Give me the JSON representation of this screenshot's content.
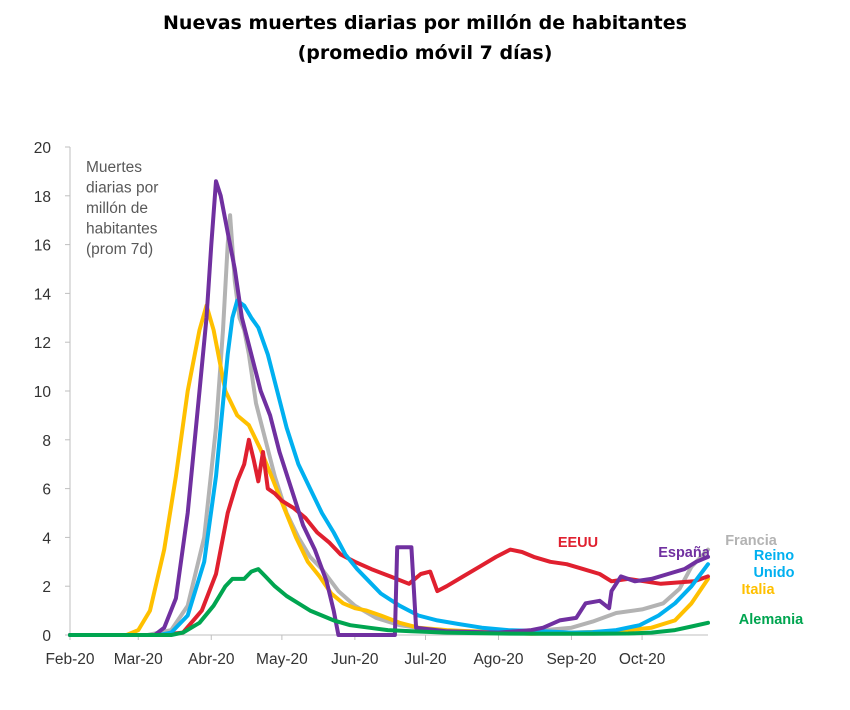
{
  "chart_data": {
    "type": "line",
    "title": "Nuevas muertes diarias por millón de habitantes",
    "subtitle": "(promedio móvil 7 días)",
    "ylabel_lines": [
      "Muertes",
      "diarias por",
      "millón de",
      "habitantes",
      "(prom 7d)"
    ],
    "ylim": [
      0,
      20
    ],
    "yticks": [
      0,
      2,
      4,
      6,
      8,
      10,
      12,
      14,
      16,
      18,
      20
    ],
    "xticks": [
      "Feb-20",
      "Mar-20",
      "Abr-20",
      "May-20",
      "Jun-20",
      "Jul-20",
      "Ago-20",
      "Sep-20",
      "Oct-20"
    ],
    "xlim": [
      "2020-02-01",
      "2020-10-29"
    ],
    "grid": false,
    "series": [
      {
        "name": "Francia",
        "label_lines": [
          "Francia"
        ],
        "color": "#b3b3b3",
        "points": [
          [
            "2020-02-01",
            0
          ],
          [
            "2020-03-05",
            0
          ],
          [
            "2020-03-15",
            0.2
          ],
          [
            "2020-03-22",
            1.2
          ],
          [
            "2020-03-29",
            4
          ],
          [
            "2020-04-03",
            8.5
          ],
          [
            "2020-04-06",
            12.5
          ],
          [
            "2020-04-08",
            16
          ],
          [
            "2020-04-09",
            17.2
          ],
          [
            "2020-04-11",
            14.5
          ],
          [
            "2020-04-13",
            13
          ],
          [
            "2020-04-15",
            12.5
          ],
          [
            "2020-04-17",
            11.5
          ],
          [
            "2020-04-20",
            9.5
          ],
          [
            "2020-04-24",
            8
          ],
          [
            "2020-04-28",
            6.5
          ],
          [
            "2020-05-03",
            5
          ],
          [
            "2020-05-08",
            4
          ],
          [
            "2020-05-13",
            3.2
          ],
          [
            "2020-05-18",
            2.7
          ],
          [
            "2020-05-25",
            1.8
          ],
          [
            "2020-06-01",
            1.2
          ],
          [
            "2020-06-10",
            0.7
          ],
          [
            "2020-06-20",
            0.4
          ],
          [
            "2020-07-01",
            0.25
          ],
          [
            "2020-07-15",
            0.15
          ],
          [
            "2020-08-01",
            0.15
          ],
          [
            "2020-08-15",
            0.15
          ],
          [
            "2020-09-01",
            0.3
          ],
          [
            "2020-09-10",
            0.55
          ],
          [
            "2020-09-20",
            0.9
          ],
          [
            "2020-10-01",
            1.05
          ],
          [
            "2020-10-10",
            1.3
          ],
          [
            "2020-10-17",
            1.9
          ],
          [
            "2020-10-22",
            2.8
          ],
          [
            "2020-10-29",
            3.5
          ]
        ]
      },
      {
        "name": "Italia",
        "label_lines": [
          "Italia"
        ],
        "color": "#ffc000",
        "points": [
          [
            "2020-02-01",
            0
          ],
          [
            "2020-02-25",
            0
          ],
          [
            "2020-03-01",
            0.2
          ],
          [
            "2020-03-06",
            1
          ],
          [
            "2020-03-12",
            3.5
          ],
          [
            "2020-03-17",
            6.5
          ],
          [
            "2020-03-22",
            10
          ],
          [
            "2020-03-27",
            12.5
          ],
          [
            "2020-03-30",
            13.5
          ],
          [
            "2020-04-02",
            12.5
          ],
          [
            "2020-04-07",
            10
          ],
          [
            "2020-04-12",
            9
          ],
          [
            "2020-04-17",
            8.6
          ],
          [
            "2020-04-22",
            7.6
          ],
          [
            "2020-04-27",
            6.4
          ],
          [
            "2020-05-02",
            5.2
          ],
          [
            "2020-05-07",
            4
          ],
          [
            "2020-05-12",
            3
          ],
          [
            "2020-05-17",
            2.4
          ],
          [
            "2020-05-22",
            1.7
          ],
          [
            "2020-05-27",
            1.3
          ],
          [
            "2020-06-01",
            1.1
          ],
          [
            "2020-06-06",
            1
          ],
          [
            "2020-06-12",
            0.8
          ],
          [
            "2020-06-20",
            0.5
          ],
          [
            "2020-06-28",
            0.3
          ],
          [
            "2020-07-10",
            0.2
          ],
          [
            "2020-08-01",
            0.1
          ],
          [
            "2020-08-15",
            0.05
          ],
          [
            "2020-09-01",
            0.1
          ],
          [
            "2020-09-20",
            0.15
          ],
          [
            "2020-10-05",
            0.3
          ],
          [
            "2020-10-15",
            0.6
          ],
          [
            "2020-10-22",
            1.3
          ],
          [
            "2020-10-29",
            2.3
          ]
        ]
      },
      {
        "name": "EEUU",
        "label_lines": [
          "EEUU"
        ],
        "color": "#e0202f",
        "points": [
          [
            "2020-02-01",
            0
          ],
          [
            "2020-03-10",
            0
          ],
          [
            "2020-03-20",
            0.1
          ],
          [
            "2020-03-28",
            1
          ],
          [
            "2020-04-03",
            2.5
          ],
          [
            "2020-04-08",
            5
          ],
          [
            "2020-04-12",
            6.3
          ],
          [
            "2020-04-15",
            7
          ],
          [
            "2020-04-17",
            8
          ],
          [
            "2020-04-19",
            7.2
          ],
          [
            "2020-04-21",
            6.3
          ],
          [
            "2020-04-23",
            7.5
          ],
          [
            "2020-04-25",
            6
          ],
          [
            "2020-04-28",
            5.8
          ],
          [
            "2020-05-01",
            5.5
          ],
          [
            "2020-05-06",
            5.2
          ],
          [
            "2020-05-11",
            4.8
          ],
          [
            "2020-05-16",
            4.2
          ],
          [
            "2020-05-21",
            3.8
          ],
          [
            "2020-05-26",
            3.3
          ],
          [
            "2020-06-01",
            3
          ],
          [
            "2020-06-08",
            2.7
          ],
          [
            "2020-06-16",
            2.4
          ],
          [
            "2020-06-24",
            2.1
          ],
          [
            "2020-06-29",
            2.5
          ],
          [
            "2020-07-03",
            2.6
          ],
          [
            "2020-07-06",
            1.8
          ],
          [
            "2020-07-10",
            2
          ],
          [
            "2020-07-17",
            2.4
          ],
          [
            "2020-07-24",
            2.8
          ],
          [
            "2020-07-31",
            3.2
          ],
          [
            "2020-08-06",
            3.5
          ],
          [
            "2020-08-11",
            3.4
          ],
          [
            "2020-08-16",
            3.2
          ],
          [
            "2020-08-23",
            3
          ],
          [
            "2020-08-30",
            2.9
          ],
          [
            "2020-09-06",
            2.7
          ],
          [
            "2020-09-13",
            2.5
          ],
          [
            "2020-09-18",
            2.2
          ],
          [
            "2020-09-25",
            2.3
          ],
          [
            "2020-10-02",
            2.2
          ],
          [
            "2020-10-09",
            2.1
          ],
          [
            "2020-10-16",
            2.15
          ],
          [
            "2020-10-23",
            2.2
          ],
          [
            "2020-10-29",
            2.4
          ]
        ]
      },
      {
        "name": "España",
        "label_lines": [
          "España"
        ],
        "color": "#7030a0",
        "points": [
          [
            "2020-02-01",
            0
          ],
          [
            "2020-03-08",
            0
          ],
          [
            "2020-03-12",
            0.3
          ],
          [
            "2020-03-17",
            1.5
          ],
          [
            "2020-03-22",
            5
          ],
          [
            "2020-03-27",
            10
          ],
          [
            "2020-03-30",
            13
          ],
          [
            "2020-04-01",
            16
          ],
          [
            "2020-04-03",
            18.6
          ],
          [
            "2020-04-05",
            18
          ],
          [
            "2020-04-08",
            16.5
          ],
          [
            "2020-04-11",
            15
          ],
          [
            "2020-04-14",
            13
          ],
          [
            "2020-04-18",
            11.5
          ],
          [
            "2020-04-22",
            10
          ],
          [
            "2020-04-26",
            9
          ],
          [
            "2020-04-30",
            7.5
          ],
          [
            "2020-05-05",
            6
          ],
          [
            "2020-05-10",
            4.5
          ],
          [
            "2020-05-15",
            3.5
          ],
          [
            "2020-05-20",
            2.2
          ],
          [
            "2020-05-23",
            1
          ],
          [
            "2020-05-25",
            0
          ],
          [
            "2020-06-18",
            0
          ],
          [
            "2020-06-19",
            3.6
          ],
          [
            "2020-06-25",
            3.6
          ],
          [
            "2020-06-27",
            0.3
          ],
          [
            "2020-07-10",
            0.15
          ],
          [
            "2020-08-01",
            0.1
          ],
          [
            "2020-08-15",
            0.2
          ],
          [
            "2020-08-20",
            0.3
          ],
          [
            "2020-08-27",
            0.6
          ],
          [
            "2020-09-03",
            0.7
          ],
          [
            "2020-09-07",
            1.3
          ],
          [
            "2020-09-13",
            1.4
          ],
          [
            "2020-09-17",
            1.1
          ],
          [
            "2020-09-18",
            1.8
          ],
          [
            "2020-09-22",
            2.4
          ],
          [
            "2020-09-28",
            2.2
          ],
          [
            "2020-10-05",
            2.3
          ],
          [
            "2020-10-12",
            2.5
          ],
          [
            "2020-10-19",
            2.7
          ],
          [
            "2020-10-24",
            3
          ],
          [
            "2020-10-29",
            3.2
          ]
        ]
      },
      {
        "name": "Reino Unido",
        "label_lines": [
          "Reino",
          "Unido"
        ],
        "color": "#00b0f0",
        "points": [
          [
            "2020-02-01",
            0
          ],
          [
            "2020-03-10",
            0
          ],
          [
            "2020-03-15",
            0.1
          ],
          [
            "2020-03-22",
            0.8
          ],
          [
            "2020-03-29",
            3
          ],
          [
            "2020-04-03",
            6.5
          ],
          [
            "2020-04-06",
            9.5
          ],
          [
            "2020-04-08",
            11.5
          ],
          [
            "2020-04-10",
            13
          ],
          [
            "2020-04-12",
            13.7
          ],
          [
            "2020-04-15",
            13.5
          ],
          [
            "2020-04-18",
            13
          ],
          [
            "2020-04-21",
            12.6
          ],
          [
            "2020-04-25",
            11.5
          ],
          [
            "2020-04-29",
            10
          ],
          [
            "2020-05-03",
            8.5
          ],
          [
            "2020-05-08",
            7
          ],
          [
            "2020-05-13",
            6
          ],
          [
            "2020-05-18",
            5
          ],
          [
            "2020-05-23",
            4.2
          ],
          [
            "2020-05-28",
            3.3
          ],
          [
            "2020-06-02",
            2.7
          ],
          [
            "2020-06-07",
            2.2
          ],
          [
            "2020-06-12",
            1.7
          ],
          [
            "2020-06-20",
            1.2
          ],
          [
            "2020-06-28",
            0.8
          ],
          [
            "2020-07-06",
            0.6
          ],
          [
            "2020-07-15",
            0.45
          ],
          [
            "2020-07-25",
            0.3
          ],
          [
            "2020-08-05",
            0.2
          ],
          [
            "2020-08-20",
            0.15
          ],
          [
            "2020-09-01",
            0.1
          ],
          [
            "2020-09-10",
            0.12
          ],
          [
            "2020-09-20",
            0.2
          ],
          [
            "2020-09-30",
            0.4
          ],
          [
            "2020-10-08",
            0.8
          ],
          [
            "2020-10-15",
            1.3
          ],
          [
            "2020-10-22",
            2
          ],
          [
            "2020-10-29",
            2.9
          ]
        ]
      },
      {
        "name": "Alemania",
        "label_lines": [
          "Alemania"
        ],
        "color": "#00a550",
        "points": [
          [
            "2020-02-01",
            0
          ],
          [
            "2020-03-15",
            0
          ],
          [
            "2020-03-20",
            0.1
          ],
          [
            "2020-03-27",
            0.5
          ],
          [
            "2020-04-02",
            1.2
          ],
          [
            "2020-04-07",
            2
          ],
          [
            "2020-04-10",
            2.3
          ],
          [
            "2020-04-15",
            2.3
          ],
          [
            "2020-04-18",
            2.6
          ],
          [
            "2020-04-21",
            2.7
          ],
          [
            "2020-04-24",
            2.4
          ],
          [
            "2020-04-28",
            2
          ],
          [
            "2020-05-03",
            1.6
          ],
          [
            "2020-05-08",
            1.3
          ],
          [
            "2020-05-13",
            1
          ],
          [
            "2020-05-18",
            0.8
          ],
          [
            "2020-05-23",
            0.6
          ],
          [
            "2020-05-30",
            0.4
          ],
          [
            "2020-06-07",
            0.3
          ],
          [
            "2020-06-15",
            0.2
          ],
          [
            "2020-06-25",
            0.15
          ],
          [
            "2020-07-10",
            0.1
          ],
          [
            "2020-08-01",
            0.06
          ],
          [
            "2020-08-20",
            0.05
          ],
          [
            "2020-09-10",
            0.05
          ],
          [
            "2020-09-25",
            0.06
          ],
          [
            "2020-10-05",
            0.1
          ],
          [
            "2020-10-15",
            0.2
          ],
          [
            "2020-10-22",
            0.35
          ],
          [
            "2020-10-29",
            0.5
          ]
        ]
      }
    ]
  }
}
